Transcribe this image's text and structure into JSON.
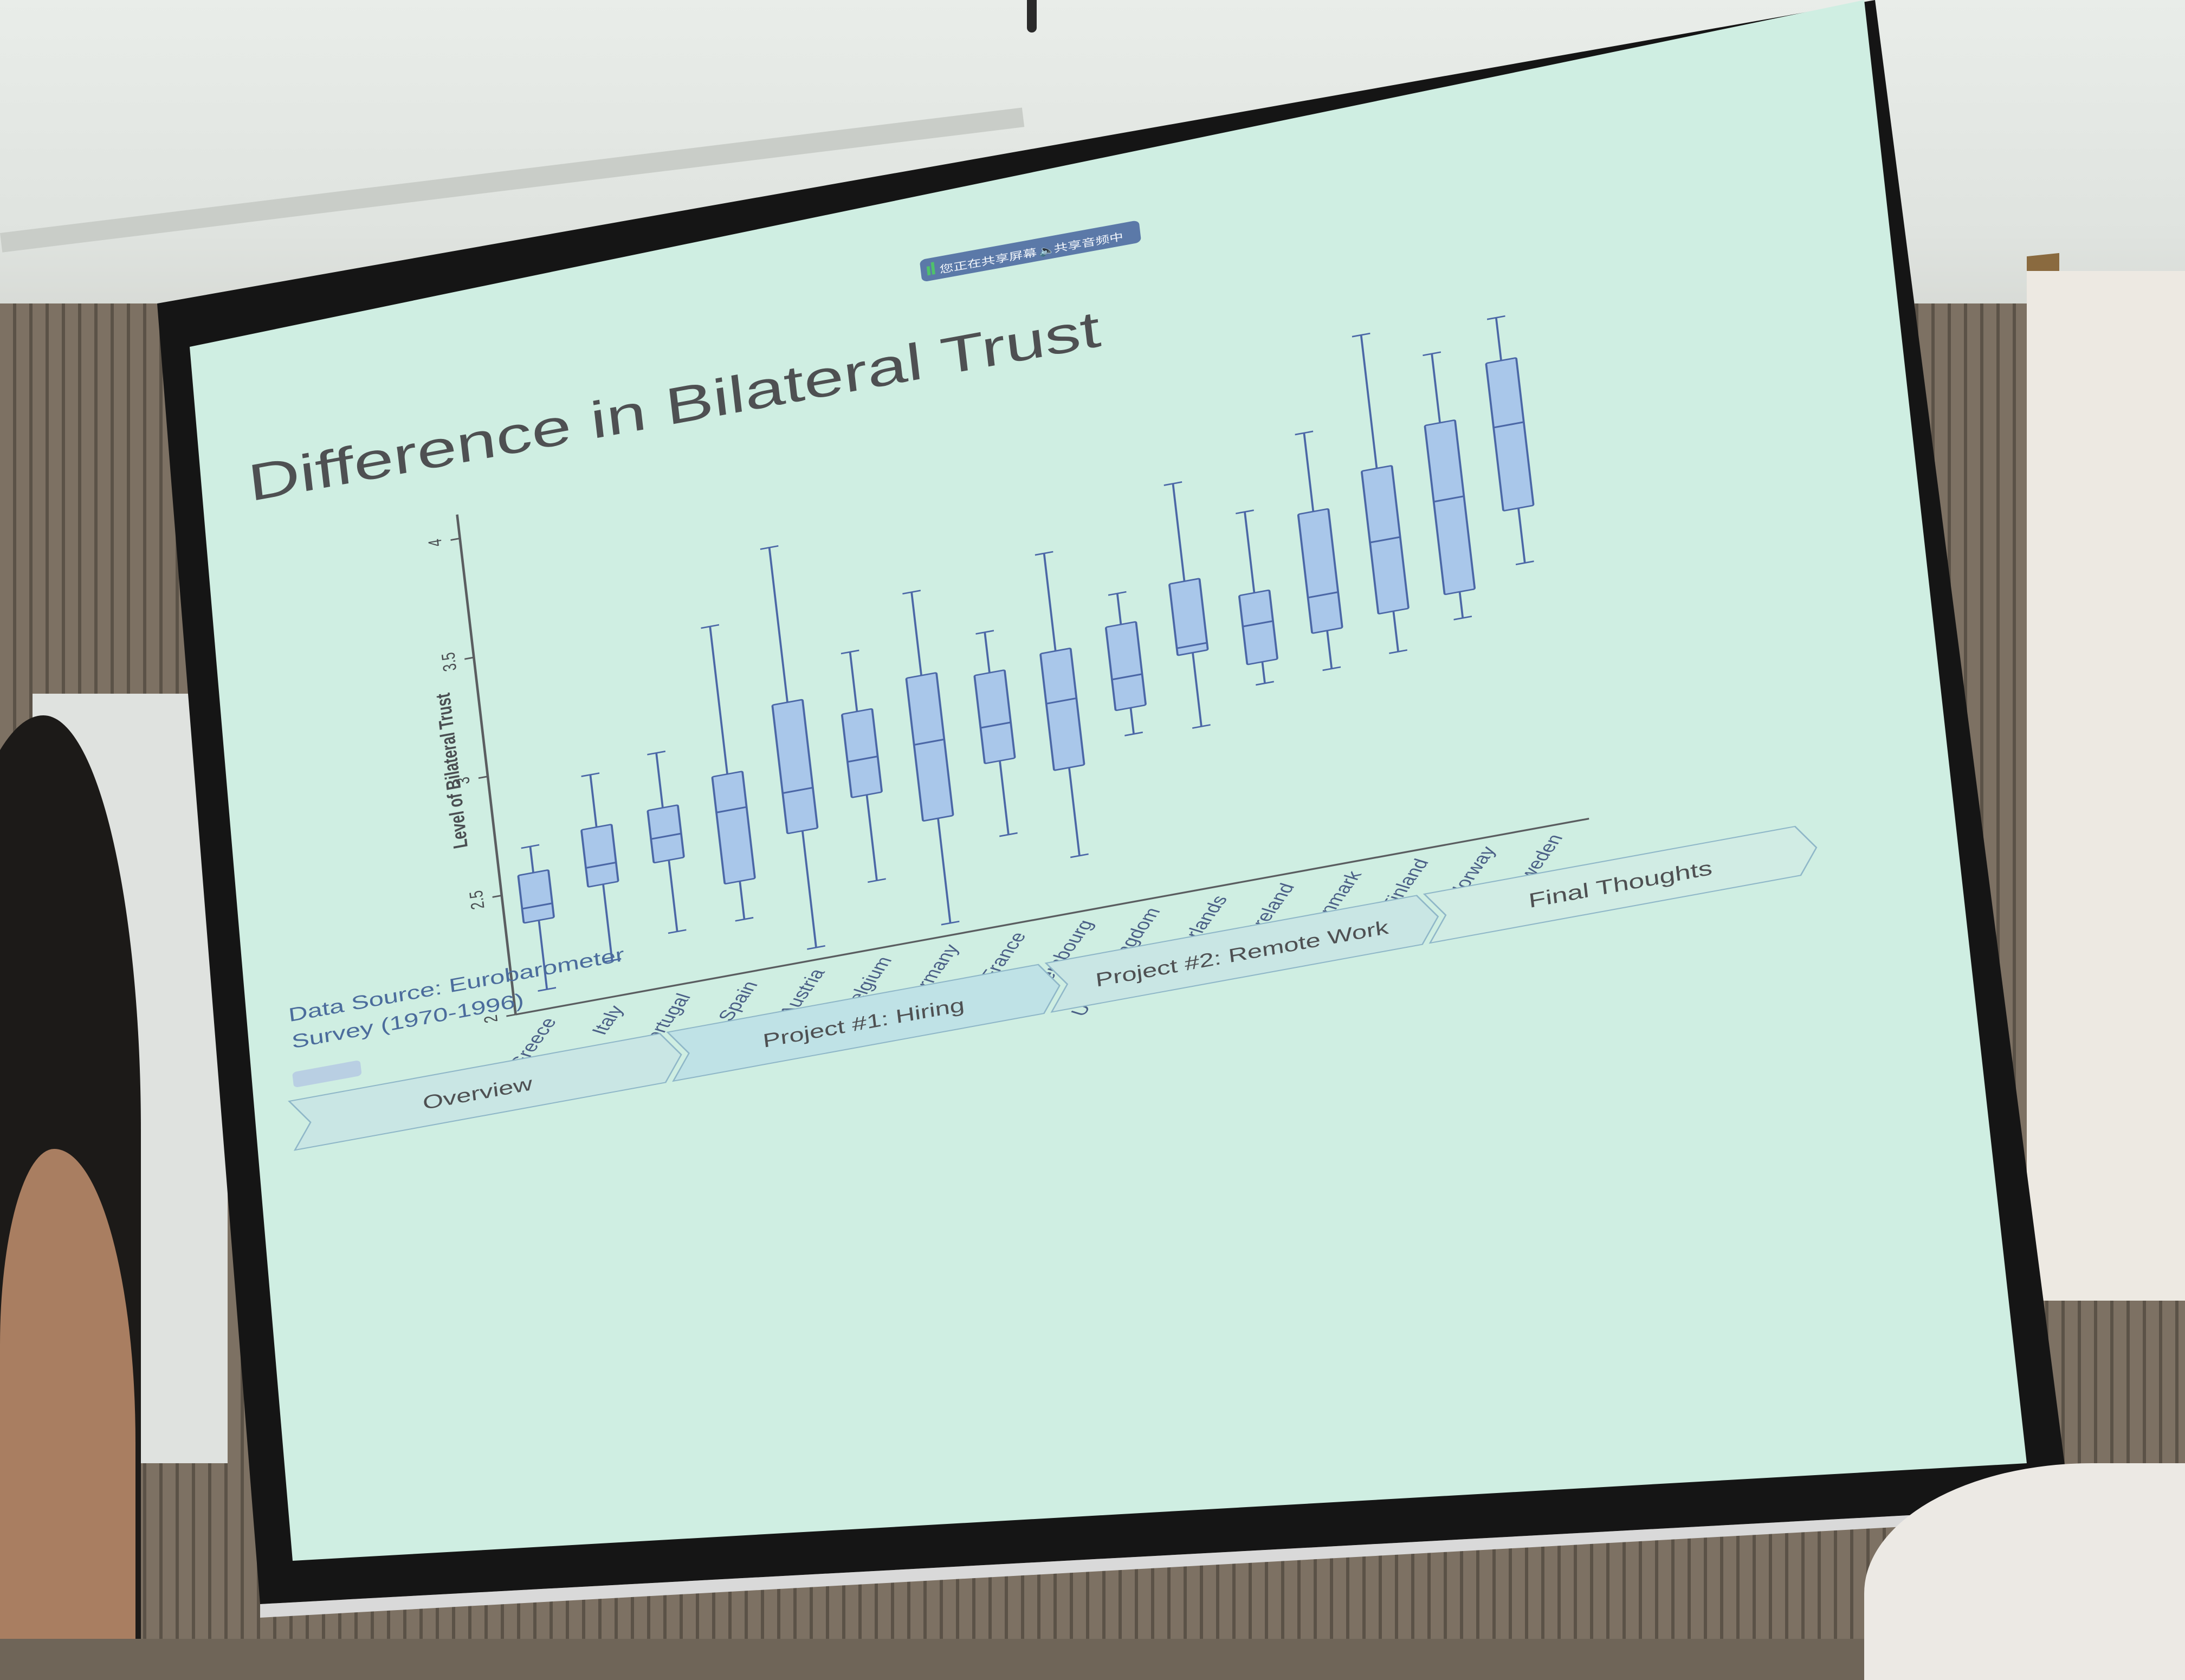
{
  "slide": {
    "title": "Difference in Bilateral Trust",
    "source_line1": "Data Source: Eurobarometer",
    "source_line2": "Survey (1970-1996)"
  },
  "share_bar": {
    "screen_share_text": "您正在共享屏幕",
    "audio_share_text": "共享音频中"
  },
  "nav_tabs": [
    "Overview",
    "Project #1: Hiring",
    "Project #2: Remote Work",
    "Final Thoughts"
  ],
  "colors": {
    "screen_background": "#cfeee2",
    "box_fill": "#a9c7ea",
    "box_stroke": "#4b67a6",
    "title_text": "#4e5052",
    "source_text": "#4b6c9c"
  },
  "chart_data": {
    "type": "box",
    "ylabel": "Level of Bilateral Trust",
    "yticks": [
      "2",
      "2.5",
      "3",
      "3.5",
      "4"
    ],
    "ylim": [
      2,
      4.1
    ],
    "categories": [
      "Greece",
      "Italy",
      "Portugal",
      "Spain",
      "Austria",
      "Belgium",
      "Germany",
      "France",
      "Luxembourg",
      "United Kingdom",
      "Netherlands",
      "Ireland",
      "Denmark",
      "Finland",
      "Norway",
      "Sweden"
    ],
    "series": [
      {
        "min": 2.08,
        "q1": 2.37,
        "median": 2.43,
        "q3": 2.57,
        "max": 2.68
      },
      {
        "min": 2.15,
        "q1": 2.47,
        "median": 2.55,
        "q3": 2.71,
        "max": 2.93
      },
      {
        "min": 2.22,
        "q1": 2.52,
        "median": 2.62,
        "q3": 2.74,
        "max": 2.97
      },
      {
        "min": 2.22,
        "q1": 2.38,
        "median": 2.68,
        "q3": 2.83,
        "max": 3.45
      },
      {
        "min": 2.05,
        "q1": 2.54,
        "median": 2.71,
        "q3": 3.08,
        "max": 3.73
      },
      {
        "min": 2.28,
        "q1": 2.64,
        "median": 2.79,
        "q3": 2.99,
        "max": 3.24
      },
      {
        "min": 2.05,
        "q1": 2.49,
        "median": 2.81,
        "q3": 3.09,
        "max": 3.44
      },
      {
        "min": 2.37,
        "q1": 2.68,
        "median": 2.83,
        "q3": 3.05,
        "max": 3.22
      },
      {
        "min": 2.23,
        "q1": 2.6,
        "median": 2.88,
        "q3": 3.09,
        "max": 3.5
      },
      {
        "min": 2.69,
        "q1": 2.8,
        "median": 2.93,
        "q3": 3.15,
        "max": 3.28
      },
      {
        "min": 2.67,
        "q1": 2.98,
        "median": 3.01,
        "q3": 3.28,
        "max": 3.69
      },
      {
        "min": 2.8,
        "q1": 2.89,
        "median": 3.05,
        "q3": 3.18,
        "max": 3.52
      },
      {
        "min": 2.81,
        "q1": 2.97,
        "median": 3.12,
        "q3": 3.47,
        "max": 3.8
      },
      {
        "min": 2.83,
        "q1": 3.0,
        "median": 3.3,
        "q3": 3.6,
        "max": 4.16
      },
      {
        "min": 2.92,
        "q1": 3.03,
        "median": 3.42,
        "q3": 3.74,
        "max": 4.03
      },
      {
        "min": 3.1,
        "q1": 3.33,
        "median": 3.68,
        "q3": 3.95,
        "max": 4.13
      }
    ]
  }
}
